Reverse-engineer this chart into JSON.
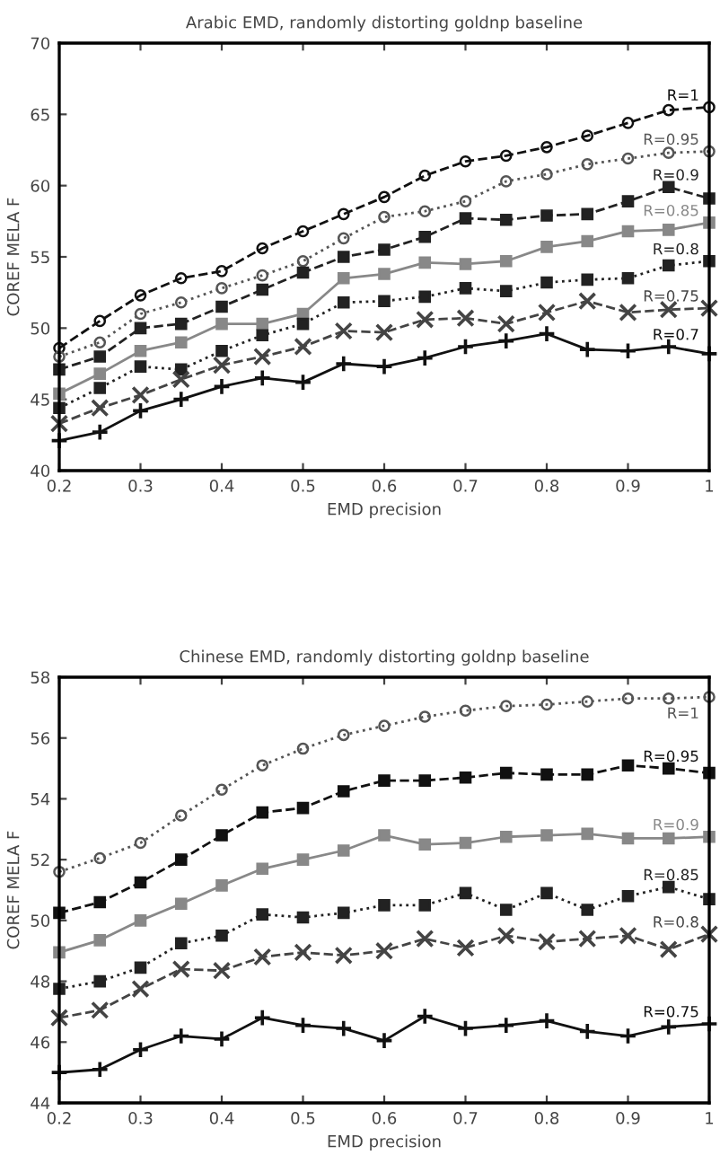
{
  "chart_data": [
    {
      "type": "line",
      "title": "Arabic EMD, randomly distorting goldnp baseline",
      "xlabel": "EMD precision",
      "ylabel": "COREF MELA F",
      "x": [
        0.2,
        0.25,
        0.3,
        0.35,
        0.4,
        0.45,
        0.5,
        0.55,
        0.6,
        0.65,
        0.7,
        0.75,
        0.8,
        0.85,
        0.9,
        0.95,
        1
      ],
      "xlim": [
        0.2,
        1
      ],
      "xticks": [
        0.2,
        0.3,
        0.4,
        0.5,
        0.6,
        0.7,
        0.8,
        0.9,
        1
      ],
      "ylim": [
        40,
        70
      ],
      "yticks": [
        40,
        45,
        50,
        55,
        60,
        65,
        70
      ],
      "grid": false,
      "legend": "right",
      "series": [
        {
          "name": "R=1",
          "color": "#111111",
          "marker": "circle",
          "line_style": "dashed",
          "values": [
            48.6,
            50.5,
            52.3,
            53.5,
            54.0,
            55.6,
            56.8,
            58.0,
            59.2,
            60.7,
            61.7,
            62.1,
            62.7,
            63.5,
            64.4,
            65.3,
            65.5
          ]
        },
        {
          "name": "R=0.95",
          "color": "#555555",
          "marker": "circle",
          "line_style": "dotted",
          "values": [
            48.0,
            49.0,
            51.0,
            51.8,
            52.8,
            53.7,
            54.7,
            56.3,
            57.8,
            58.2,
            58.9,
            60.3,
            60.8,
            61.5,
            61.9,
            62.3,
            62.4
          ]
        },
        {
          "name": "R=0.9",
          "color": "#222222",
          "marker": "square",
          "line_style": "dashed",
          "values": [
            47.1,
            48.0,
            50.0,
            50.3,
            51.5,
            52.7,
            53.9,
            55.0,
            55.5,
            56.4,
            57.7,
            57.6,
            57.9,
            58.0,
            58.9,
            59.9,
            59.1
          ]
        },
        {
          "name": "R=0.85",
          "color": "#888888",
          "marker": "square",
          "line_style": "solid",
          "values": [
            45.4,
            46.8,
            48.4,
            49.0,
            50.3,
            50.3,
            51.0,
            53.5,
            53.8,
            54.6,
            54.5,
            54.7,
            55.7,
            56.1,
            56.8,
            56.9,
            57.4
          ]
        },
        {
          "name": "R=0.8",
          "color": "#222222",
          "marker": "square",
          "line_style": "dotted",
          "values": [
            44.4,
            45.8,
            47.3,
            47.1,
            48.4,
            49.5,
            50.3,
            51.8,
            51.9,
            52.2,
            52.8,
            52.6,
            53.2,
            53.4,
            53.5,
            54.4,
            54.7
          ]
        },
        {
          "name": "R=0.75",
          "color": "#444444",
          "marker": "cross",
          "line_style": "dashed",
          "values": [
            43.3,
            44.4,
            45.3,
            46.4,
            47.4,
            48.0,
            48.7,
            49.8,
            49.7,
            50.6,
            50.7,
            50.3,
            51.1,
            51.9,
            51.1,
            51.3,
            51.4
          ]
        },
        {
          "name": "R=0.7",
          "color": "#111111",
          "marker": "plus",
          "line_style": "solid",
          "values": [
            42.1,
            42.7,
            44.2,
            45.0,
            45.9,
            46.5,
            46.2,
            47.5,
            47.3,
            47.9,
            48.7,
            49.1,
            49.6,
            48.5,
            48.4,
            48.7,
            48.2
          ]
        }
      ]
    },
    {
      "type": "line",
      "title": "Chinese EMD, randomly distorting goldnp baseline",
      "xlabel": "EMD precision",
      "ylabel": "COREF MELA F",
      "x": [
        0.2,
        0.25,
        0.3,
        0.35,
        0.4,
        0.45,
        0.5,
        0.55,
        0.6,
        0.65,
        0.7,
        0.75,
        0.8,
        0.85,
        0.9,
        0.95,
        1
      ],
      "xlim": [
        0.2,
        1
      ],
      "xticks": [
        0.2,
        0.3,
        0.4,
        0.5,
        0.6,
        0.7,
        0.8,
        0.9,
        1
      ],
      "ylim": [
        44,
        58
      ],
      "yticks": [
        44,
        46,
        48,
        50,
        52,
        54,
        56,
        58
      ],
      "grid": false,
      "legend": "right",
      "series": [
        {
          "name": "R=1",
          "color": "#555555",
          "marker": "circle",
          "line_style": "dotted",
          "values": [
            51.6,
            52.05,
            52.55,
            53.45,
            54.3,
            55.1,
            55.65,
            56.1,
            56.4,
            56.7,
            56.9,
            57.05,
            57.1,
            57.2,
            57.3,
            57.3,
            57.35
          ]
        },
        {
          "name": "R=0.95",
          "color": "#111111",
          "marker": "square",
          "line_style": "dashed",
          "values": [
            50.25,
            50.6,
            51.25,
            52.0,
            52.8,
            53.55,
            53.7,
            54.25,
            54.6,
            54.6,
            54.7,
            54.85,
            54.8,
            54.8,
            55.1,
            55.0,
            54.85
          ]
        },
        {
          "name": "R=0.9",
          "color": "#888888",
          "marker": "square",
          "line_style": "solid",
          "values": [
            48.95,
            49.35,
            50.0,
            50.55,
            51.15,
            51.7,
            52.0,
            52.3,
            52.8,
            52.5,
            52.55,
            52.75,
            52.8,
            52.85,
            52.7,
            52.7,
            52.75
          ]
        },
        {
          "name": "R=0.85",
          "color": "#222222",
          "marker": "square",
          "line_style": "dotted",
          "values": [
            47.75,
            48.0,
            48.45,
            49.25,
            49.5,
            50.2,
            50.1,
            50.25,
            50.5,
            50.5,
            50.9,
            50.35,
            50.9,
            50.35,
            50.8,
            51.1,
            50.7
          ]
        },
        {
          "name": "R=0.8",
          "color": "#444444",
          "marker": "cross",
          "line_style": "dashed",
          "values": [
            46.8,
            47.05,
            47.75,
            48.4,
            48.35,
            48.8,
            48.95,
            48.85,
            49.0,
            49.4,
            49.1,
            49.5,
            49.3,
            49.4,
            49.5,
            49.05,
            49.55
          ]
        },
        {
          "name": "R=0.75",
          "color": "#111111",
          "marker": "plus",
          "line_style": "solid",
          "values": [
            45.0,
            45.1,
            45.75,
            46.2,
            46.1,
            46.8,
            46.55,
            46.45,
            46.05,
            46.85,
            46.45,
            46.55,
            46.7,
            46.35,
            46.2,
            46.5,
            46.6
          ]
        }
      ]
    }
  ]
}
